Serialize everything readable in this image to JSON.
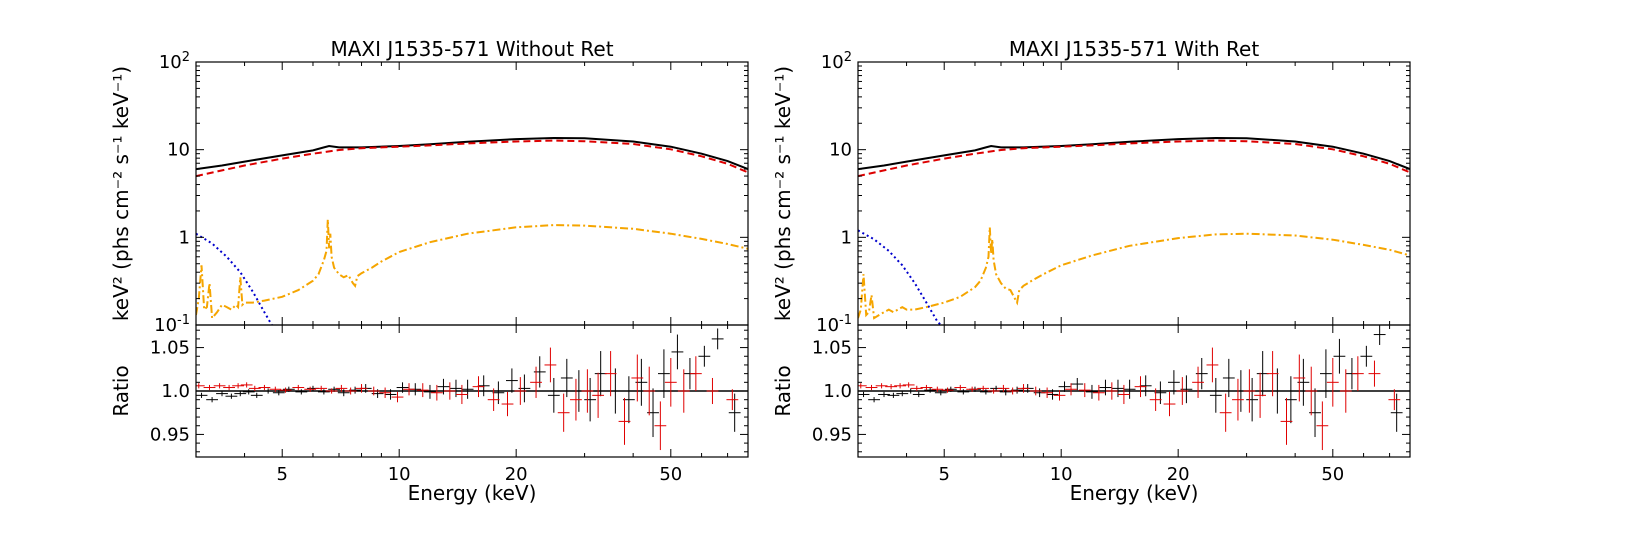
{
  "chart_data": [
    {
      "type": "line",
      "title": "MAXI J1535-571 Without Ret",
      "xlabel": "Energy (keV)",
      "ylabel_main": "keV² (phs cm⁻² s⁻¹ keV⁻¹)",
      "ylabel_ratio": "Ratio",
      "x_scale": "log",
      "y_scale_main": "log",
      "xlim": [
        3,
        79
      ],
      "ylim_main": [
        0.1,
        100
      ],
      "ylim_ratio": [
        0.924,
        1.076
      ],
      "x_ticks": [
        5,
        10,
        20,
        50
      ],
      "y_ticks_main": [
        "10^-1",
        "1",
        "10",
        "10^2"
      ],
      "y_ticks_ratio": [
        "0.95",
        "1.0",
        "1.05"
      ],
      "series": [
        {
          "role": "total model",
          "color": "#000000",
          "style": "solid",
          "x": [
            3,
            3.5,
            4,
            5,
            6,
            6.4,
            6.6,
            7,
            8,
            10,
            12,
            15,
            20,
            25,
            30,
            40,
            50,
            60,
            70,
            79
          ],
          "y": [
            6.0,
            6.6,
            7.3,
            8.6,
            9.8,
            10.6,
            11.0,
            10.6,
            10.6,
            11.0,
            11.5,
            12.3,
            13.2,
            13.6,
            13.5,
            12.4,
            10.8,
            9.0,
            7.4,
            6.0
          ]
        },
        {
          "role": "continuum component",
          "color": "#dd0000",
          "style": "dashed",
          "x": [
            3,
            3.5,
            4,
            5,
            6,
            7,
            8,
            10,
            12,
            15,
            20,
            25,
            30,
            40,
            50,
            60,
            70,
            79
          ],
          "y": [
            5.0,
            5.8,
            6.6,
            7.9,
            9.0,
            9.9,
            10.4,
            10.8,
            11.2,
            11.8,
            12.4,
            12.7,
            12.5,
            11.6,
            10.1,
            8.4,
            6.9,
            5.5
          ]
        },
        {
          "role": "soft component",
          "color": "#0000cc",
          "style": "dotted",
          "x": [
            3,
            3.3,
            3.6,
            3.9,
            4.2,
            4.5,
            4.7
          ],
          "y": [
            1.1,
            0.85,
            0.6,
            0.4,
            0.24,
            0.14,
            0.1
          ]
        },
        {
          "role": "reflection component",
          "color": "#f5a500",
          "style": "dashdot",
          "x": [
            3,
            3.05,
            3.1,
            3.15,
            3.2,
            3.25,
            3.3,
            3.4,
            3.5,
            3.6,
            3.7,
            3.8,
            3.85,
            3.9,
            3.95,
            4.0,
            4.2,
            4.5,
            5.0,
            5.5,
            6.0,
            6.2,
            6.4,
            6.5,
            6.55,
            6.6,
            6.65,
            6.7,
            6.8,
            7.0,
            7.2,
            7.4,
            7.6,
            7.7,
            7.8,
            8.0,
            8.5,
            9,
            10,
            12,
            15,
            20,
            25,
            30,
            40,
            50,
            60,
            70,
            79
          ],
          "y": [
            0.13,
            0.2,
            0.48,
            0.15,
            0.16,
            0.3,
            0.12,
            0.14,
            0.17,
            0.16,
            0.15,
            0.17,
            0.16,
            0.35,
            0.17,
            0.18,
            0.18,
            0.19,
            0.21,
            0.25,
            0.32,
            0.38,
            0.55,
            0.7,
            1.6,
            0.75,
            1.1,
            0.6,
            0.45,
            0.38,
            0.35,
            0.37,
            0.3,
            0.28,
            0.36,
            0.39,
            0.45,
            0.53,
            0.68,
            0.88,
            1.1,
            1.3,
            1.38,
            1.36,
            1.25,
            1.1,
            0.96,
            0.84,
            0.74
          ]
        }
      ],
      "ratio_series": [
        {
          "name": "black data",
          "color": "#000000",
          "x": [
            3.1,
            3.3,
            3.5,
            3.7,
            3.9,
            4.1,
            4.3,
            4.6,
            4.9,
            5.2,
            5.6,
            6.0,
            6.4,
            6.8,
            7.2,
            7.7,
            8.2,
            8.8,
            9.5,
            10.2,
            11,
            12,
            13,
            14,
            15,
            16.5,
            18,
            19.5,
            21,
            23,
            25,
            27,
            29,
            31,
            33,
            36,
            39,
            42,
            45,
            48,
            52,
            56,
            61,
            66,
            73
          ],
          "y": [
            0.995,
            0.99,
            0.997,
            0.994,
            0.997,
            0.999,
            0.995,
            1.0,
            0.998,
            1.002,
            0.999,
            1.003,
            0.999,
            1.002,
            0.998,
            1.001,
            1.003,
            0.997,
            0.996,
            1.004,
            1.002,
            0.999,
            1.005,
            1.003,
            1.002,
            1.006,
            0.998,
            1.012,
            1.003,
            1.022,
            0.995,
            1.015,
            1.0,
            0.99,
            1.02,
            1.0,
            0.99,
            1.01,
            0.975,
            1.02,
            1.045,
            1.02,
            1.04,
            1.06,
            0.975
          ],
          "err": [
            0.003,
            0.003,
            0.003,
            0.003,
            0.003,
            0.003,
            0.003,
            0.003,
            0.003,
            0.003,
            0.003,
            0.003,
            0.003,
            0.003,
            0.004,
            0.004,
            0.005,
            0.005,
            0.006,
            0.006,
            0.007,
            0.008,
            0.009,
            0.01,
            0.011,
            0.012,
            0.013,
            0.014,
            0.016,
            0.018,
            0.02,
            0.022,
            0.024,
            0.025,
            0.026,
            0.026,
            0.027,
            0.027,
            0.028,
            0.028,
            0.02,
            0.018,
            0.012,
            0.012,
            0.022
          ]
        },
        {
          "name": "red data",
          "color": "#e00000",
          "x": [
            3.05,
            3.25,
            3.45,
            3.65,
            3.85,
            4.05,
            4.25,
            4.5,
            4.8,
            5.1,
            5.5,
            5.9,
            6.3,
            6.7,
            7.1,
            7.5,
            8.0,
            8.6,
            9.2,
            9.9,
            10.6,
            11.5,
            12.5,
            13.5,
            14.5,
            16,
            17.5,
            19,
            20.5,
            22.5,
            24.5,
            26.5,
            28.5,
            30.5,
            32.5,
            35,
            38,
            41,
            44,
            47,
            50,
            54,
            58,
            64,
            72
          ],
          "y": [
            1.006,
            1.004,
            1.006,
            1.004,
            1.006,
            1.007,
            1.003,
            1.004,
            1.002,
            1.001,
            1.004,
            1.002,
            1.003,
            1.0,
            1.003,
            1.0,
            1.003,
            1.0,
            0.998,
            0.993,
            1.002,
            1.001,
            0.998,
            1.0,
            0.996,
            1.005,
            0.99,
            0.985,
            1.0,
            1.01,
            1.03,
            0.975,
            0.99,
            1.0,
            0.995,
            1.02,
            0.965,
            1.015,
            1.0,
            0.96,
            1.01,
            1.0,
            1.02,
            1.0,
            0.99
          ],
          "err": [
            0.003,
            0.003,
            0.003,
            0.003,
            0.003,
            0.003,
            0.003,
            0.003,
            0.003,
            0.003,
            0.003,
            0.003,
            0.003,
            0.003,
            0.004,
            0.004,
            0.005,
            0.005,
            0.006,
            0.006,
            0.007,
            0.008,
            0.009,
            0.01,
            0.011,
            0.012,
            0.013,
            0.014,
            0.016,
            0.018,
            0.02,
            0.022,
            0.024,
            0.025,
            0.026,
            0.026,
            0.027,
            0.027,
            0.028,
            0.028,
            0.028,
            0.025,
            0.02,
            0.015,
            0.012
          ]
        }
      ]
    },
    {
      "type": "line",
      "title": "MAXI J1535-571 With Ret",
      "xlabel": "Energy (keV)",
      "ylabel_main": "keV² (phs cm⁻² s⁻¹ keV⁻¹)",
      "ylabel_ratio": "Ratio",
      "x_scale": "log",
      "y_scale_main": "log",
      "xlim": [
        3,
        79
      ],
      "ylim_main": [
        0.1,
        100
      ],
      "ylim_ratio": [
        0.924,
        1.076
      ],
      "x_ticks": [
        5,
        10,
        20,
        50
      ],
      "y_ticks_main": [
        "10^-1",
        "1",
        "10",
        "10^2"
      ],
      "y_ticks_ratio": [
        "0.95",
        "1.0",
        "1.05"
      ],
      "series": [
        {
          "role": "total model",
          "color": "#000000",
          "style": "solid",
          "x": [
            3,
            3.5,
            4,
            5,
            6,
            6.4,
            6.6,
            7,
            8,
            10,
            12,
            15,
            20,
            25,
            30,
            40,
            50,
            60,
            70,
            79
          ],
          "y": [
            6.0,
            6.6,
            7.3,
            8.6,
            9.8,
            10.6,
            11.0,
            10.6,
            10.6,
            11.0,
            11.5,
            12.3,
            13.2,
            13.6,
            13.5,
            12.4,
            10.8,
            9.0,
            7.4,
            6.0
          ]
        },
        {
          "role": "continuum component",
          "color": "#dd0000",
          "style": "dashed",
          "x": [
            3,
            3.5,
            4,
            5,
            6,
            7,
            8,
            10,
            12,
            15,
            20,
            25,
            30,
            40,
            50,
            60,
            70,
            79
          ],
          "y": [
            5.0,
            5.8,
            6.6,
            7.9,
            9.0,
            9.9,
            10.4,
            10.8,
            11.2,
            11.8,
            12.4,
            12.7,
            12.5,
            11.6,
            10.1,
            8.4,
            6.9,
            5.5
          ]
        },
        {
          "role": "soft component",
          "color": "#0000cc",
          "style": "dotted",
          "x": [
            3,
            3.3,
            3.6,
            3.9,
            4.2,
            4.5,
            4.8,
            4.9
          ],
          "y": [
            1.2,
            0.95,
            0.7,
            0.48,
            0.3,
            0.18,
            0.11,
            0.1
          ]
        },
        {
          "role": "reflection component",
          "color": "#f5a500",
          "style": "dashdot",
          "x": [
            3,
            3.05,
            3.1,
            3.15,
            3.2,
            3.25,
            3.3,
            3.4,
            3.5,
            3.6,
            3.7,
            3.8,
            3.9,
            4.0,
            4.2,
            4.5,
            5.0,
            5.5,
            6.0,
            6.2,
            6.4,
            6.5,
            6.55,
            6.6,
            6.65,
            6.7,
            6.8,
            7.0,
            7.2,
            7.4,
            7.6,
            7.7,
            7.8,
            8.0,
            8.5,
            9,
            10,
            12,
            15,
            20,
            25,
            30,
            40,
            50,
            60,
            70,
            79
          ],
          "y": [
            0.12,
            0.15,
            0.38,
            0.13,
            0.14,
            0.22,
            0.12,
            0.13,
            0.14,
            0.15,
            0.14,
            0.15,
            0.16,
            0.15,
            0.15,
            0.16,
            0.18,
            0.21,
            0.27,
            0.32,
            0.45,
            0.6,
            1.3,
            0.65,
            0.95,
            0.55,
            0.38,
            0.3,
            0.26,
            0.25,
            0.2,
            0.18,
            0.25,
            0.28,
            0.33,
            0.38,
            0.48,
            0.62,
            0.8,
            0.98,
            1.08,
            1.1,
            1.05,
            0.94,
            0.82,
            0.72,
            0.62
          ]
        }
      ],
      "ratio_series": [
        {
          "name": "black data",
          "color": "#000000",
          "x": [
            3.1,
            3.3,
            3.5,
            3.7,
            3.9,
            4.1,
            4.3,
            4.6,
            4.9,
            5.2,
            5.6,
            6.0,
            6.4,
            6.8,
            7.2,
            7.7,
            8.2,
            8.8,
            9.5,
            10.2,
            11,
            12,
            13,
            14,
            15,
            16.5,
            18,
            19.5,
            21,
            23,
            25,
            27,
            29,
            31,
            33,
            36,
            39,
            42,
            45,
            48,
            52,
            56,
            61,
            66,
            73
          ],
          "y": [
            0.996,
            0.99,
            0.996,
            0.995,
            0.997,
            1.0,
            0.996,
            1.001,
            0.998,
            1.002,
            0.999,
            1.002,
            0.999,
            1.003,
            0.999,
            1.001,
            1.003,
            0.998,
            0.996,
            1.005,
            1.008,
            0.999,
            1.004,
            1.003,
            1.002,
            1.006,
            0.998,
            1.01,
            1.002,
            1.02,
            0.995,
            1.015,
            1.0,
            0.99,
            1.02,
            1.0,
            0.99,
            1.01,
            0.975,
            1.02,
            1.04,
            1.02,
            1.04,
            1.065,
            0.975
          ],
          "err": [
            0.003,
            0.003,
            0.003,
            0.003,
            0.003,
            0.003,
            0.003,
            0.003,
            0.003,
            0.003,
            0.003,
            0.003,
            0.003,
            0.003,
            0.004,
            0.004,
            0.005,
            0.005,
            0.006,
            0.006,
            0.007,
            0.008,
            0.009,
            0.01,
            0.011,
            0.012,
            0.013,
            0.014,
            0.016,
            0.018,
            0.02,
            0.022,
            0.024,
            0.025,
            0.026,
            0.026,
            0.027,
            0.027,
            0.028,
            0.028,
            0.02,
            0.018,
            0.012,
            0.012,
            0.022
          ]
        },
        {
          "name": "red data",
          "color": "#e00000",
          "x": [
            3.05,
            3.25,
            3.45,
            3.65,
            3.85,
            4.05,
            4.25,
            4.5,
            4.8,
            5.1,
            5.5,
            5.9,
            6.3,
            6.7,
            7.1,
            7.5,
            8.0,
            8.6,
            9.2,
            9.9,
            10.6,
            11.5,
            12.5,
            13.5,
            14.5,
            16,
            17.5,
            19,
            20.5,
            22.5,
            24.5,
            26.5,
            28.5,
            30.5,
            32.5,
            35,
            38,
            41,
            44,
            47,
            50,
            54,
            58,
            64,
            72
          ],
          "y": [
            1.006,
            1.004,
            1.006,
            1.005,
            1.006,
            1.007,
            1.003,
            1.004,
            1.002,
            1.001,
            1.004,
            1.002,
            1.003,
            1.0,
            1.003,
            1.0,
            1.003,
            1.0,
            0.998,
            0.995,
            1.002,
            1.001,
            0.998,
            1.0,
            0.996,
            1.005,
            0.99,
            0.985,
            1.0,
            1.01,
            1.03,
            0.975,
            0.99,
            1.0,
            0.995,
            1.02,
            0.965,
            1.015,
            1.0,
            0.96,
            1.01,
            1.0,
            1.02,
            1.02,
            0.99
          ],
          "err": [
            0.003,
            0.003,
            0.003,
            0.003,
            0.003,
            0.003,
            0.003,
            0.003,
            0.003,
            0.003,
            0.003,
            0.003,
            0.003,
            0.003,
            0.004,
            0.004,
            0.005,
            0.005,
            0.006,
            0.006,
            0.007,
            0.008,
            0.009,
            0.01,
            0.011,
            0.012,
            0.013,
            0.014,
            0.016,
            0.018,
            0.02,
            0.022,
            0.024,
            0.025,
            0.026,
            0.026,
            0.027,
            0.027,
            0.028,
            0.028,
            0.028,
            0.025,
            0.02,
            0.015,
            0.012
          ]
        }
      ]
    }
  ]
}
